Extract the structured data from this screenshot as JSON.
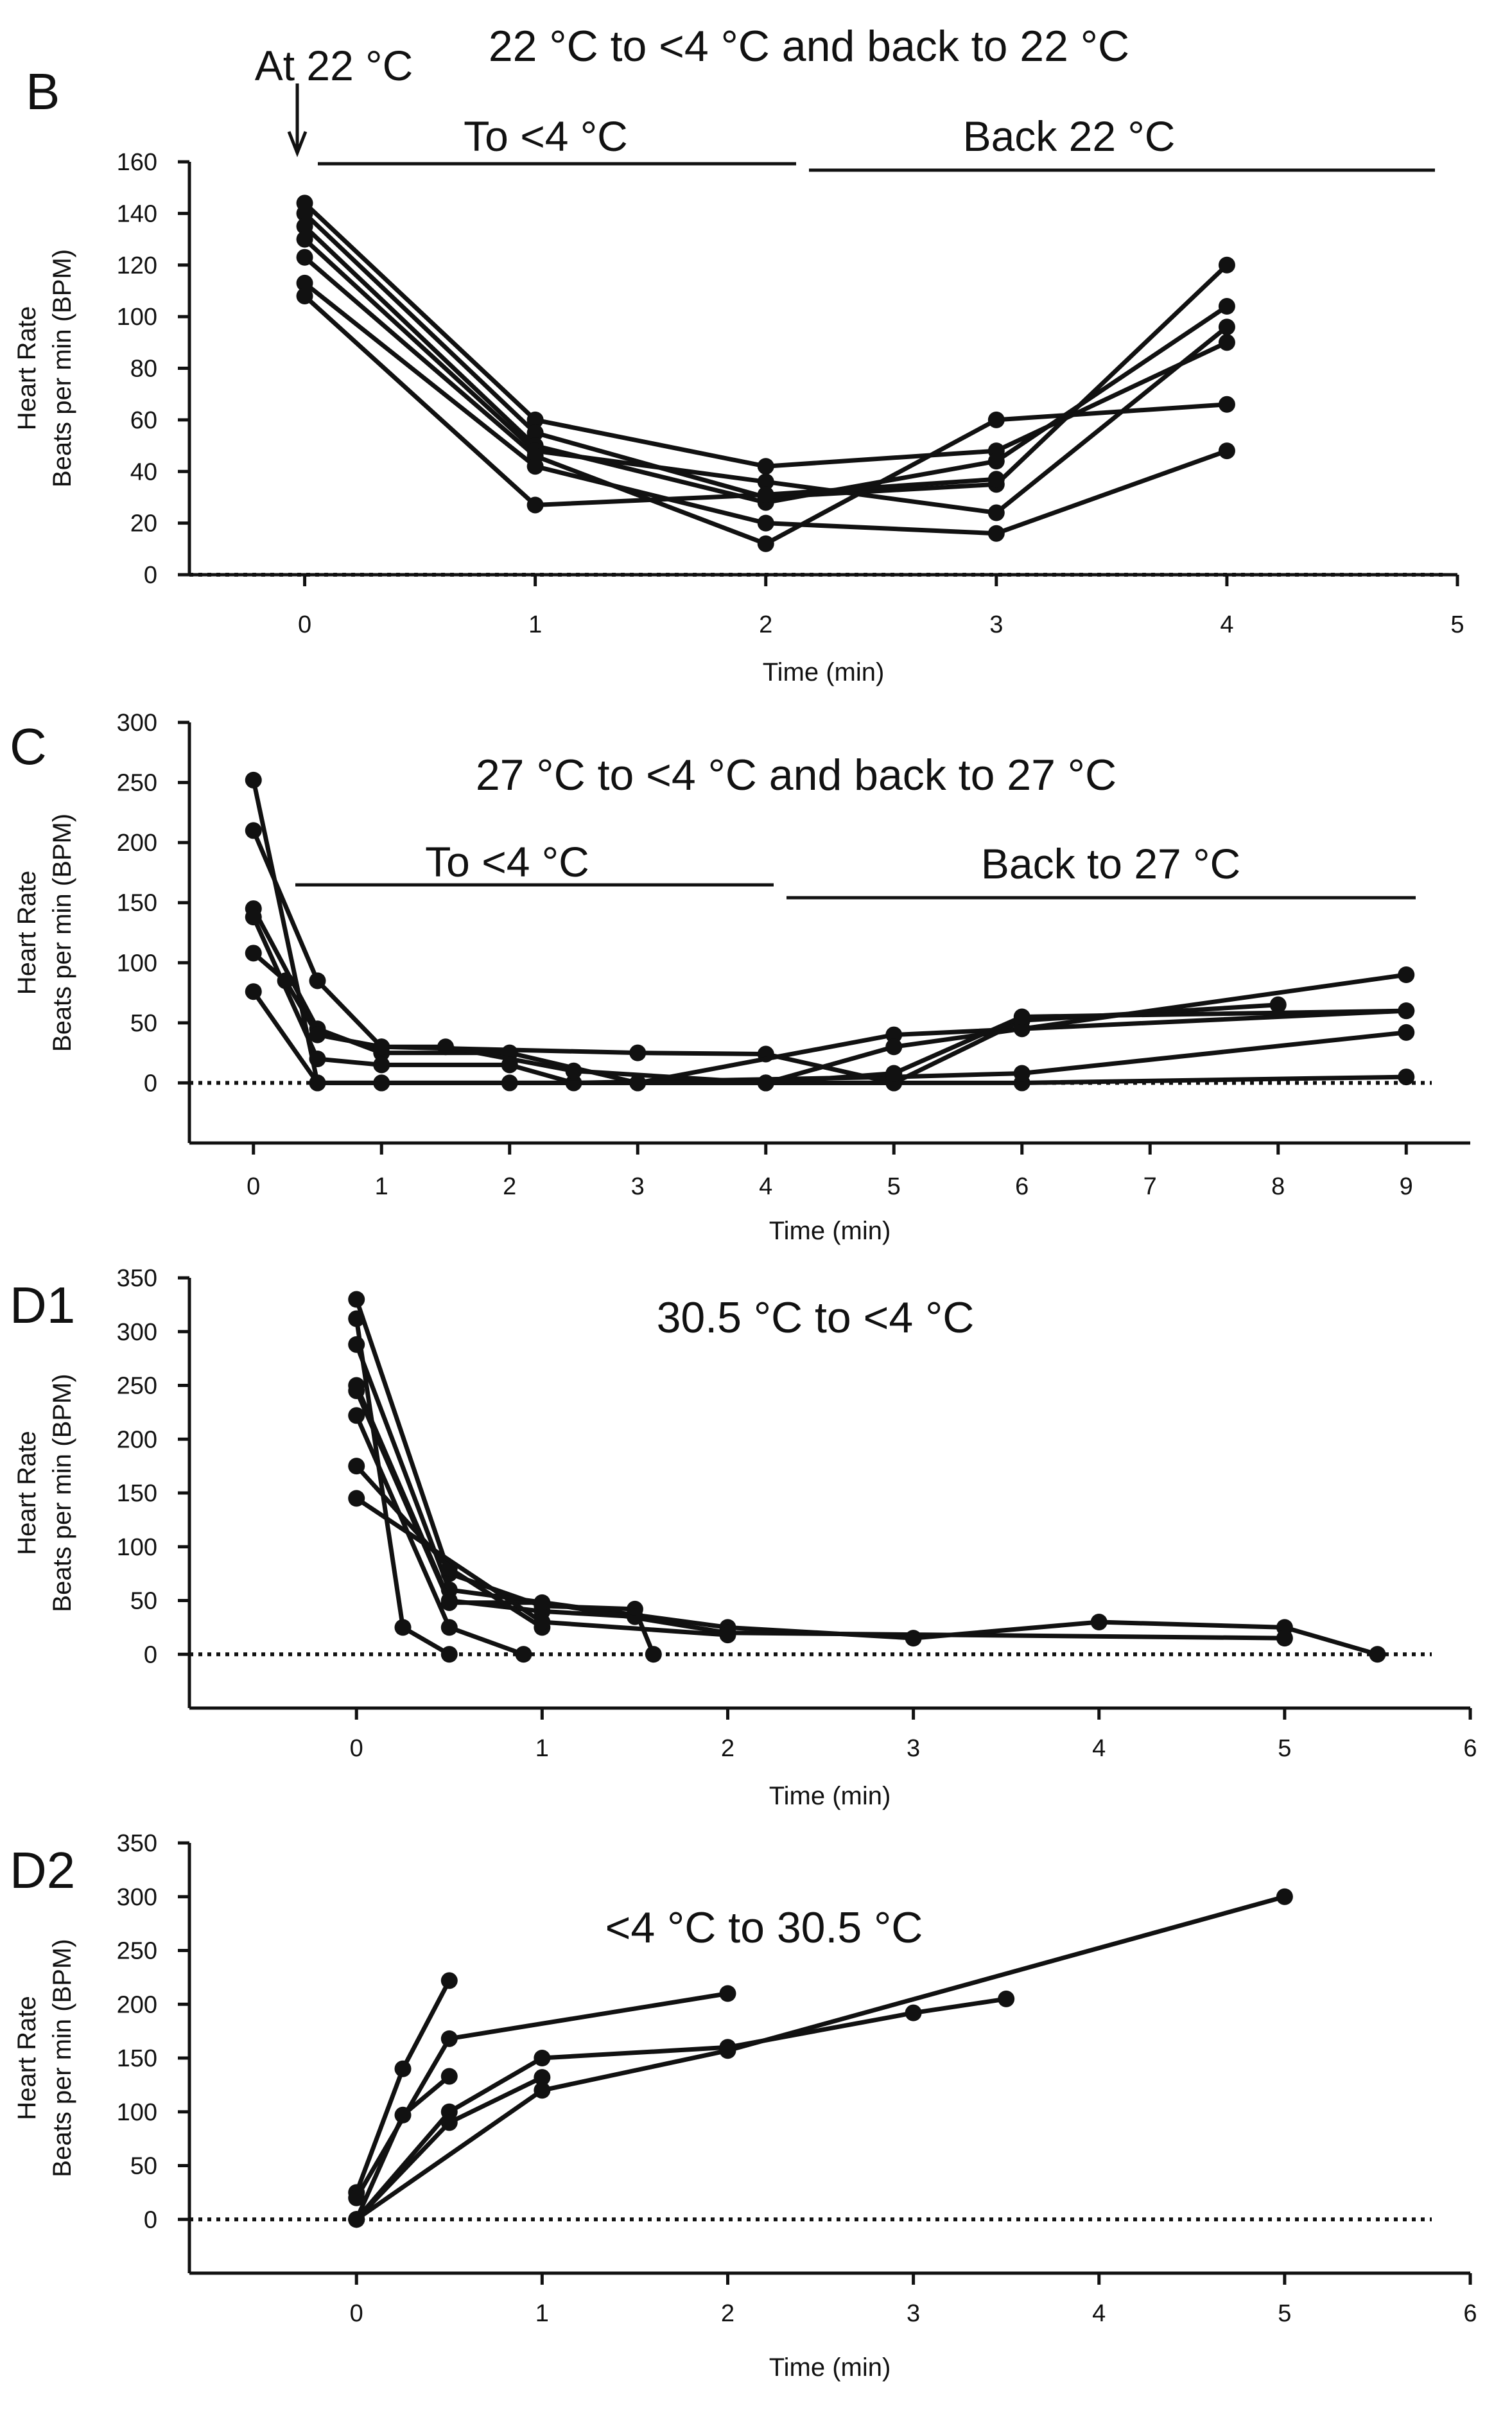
{
  "chart_data": [
    {
      "panel": "B",
      "type": "line",
      "title": "22 °C to <4 °C and back to 22 °C",
      "annotations": [
        "At 22 °C",
        "To <4 °C",
        "Back 22 °C"
      ],
      "xlabel": "Time (min)",
      "ylabel": [
        "Heart Rate",
        "Beats per min (BPM)"
      ],
      "xlim": [
        -0.5,
        5
      ],
      "ylim": [
        0,
        160
      ],
      "xticks": [
        0,
        1,
        2,
        3,
        4,
        5
      ],
      "yticks": [
        0,
        20,
        40,
        60,
        80,
        100,
        120,
        140,
        160
      ],
      "series": [
        {
          "x": [
            0,
            1,
            2,
            3,
            4
          ],
          "y": [
            144,
            60,
            42,
            48,
            90
          ]
        },
        {
          "x": [
            0,
            1,
            2,
            3,
            4
          ],
          "y": [
            140,
            55,
            30,
            35,
            120
          ]
        },
        {
          "x": [
            0,
            1,
            2,
            3,
            4
          ],
          "y": [
            135,
            50,
            28,
            44,
            104
          ]
        },
        {
          "x": [
            0,
            1,
            2,
            3,
            4
          ],
          "y": [
            130,
            48,
            36,
            24,
            96
          ]
        },
        {
          "x": [
            0,
            1,
            2,
            3,
            4
          ],
          "y": [
            123,
            46,
            12,
            60,
            66
          ]
        },
        {
          "x": [
            0,
            1,
            2,
            3,
            4
          ],
          "y": [
            113,
            42,
            20,
            16,
            48
          ]
        },
        {
          "x": [
            0,
            1,
            2,
            3
          ],
          "y": [
            108,
            27,
            31,
            37
          ]
        }
      ]
    },
    {
      "panel": "C",
      "type": "line",
      "title": "27 °C to <4 °C and back to 27 °C",
      "annotations": [
        "To <4 °C",
        "Back to 27 °C"
      ],
      "xlabel": "Time (min)",
      "ylabel": [
        "Heart Rate",
        "Beats per min (BPM)"
      ],
      "xlim": [
        -0.5,
        9.5
      ],
      "ylim": [
        -50,
        300
      ],
      "xticks": [
        0,
        1,
        2,
        3,
        4,
        5,
        6,
        7,
        8,
        9
      ],
      "yticks": [
        0,
        50,
        100,
        150,
        200,
        250,
        300
      ],
      "series": [
        {
          "x": [
            0,
            0.5,
            1,
            4,
            6,
            9
          ],
          "y": [
            252,
            0,
            0,
            0,
            0,
            5
          ]
        },
        {
          "x": [
            0,
            0.5,
            1,
            3,
            4,
            5,
            6,
            8
          ],
          "y": [
            210,
            85,
            30,
            25,
            24,
            0,
            52,
            65
          ]
        },
        {
          "x": [
            0,
            0.5,
            1,
            2,
            3,
            5,
            9
          ],
          "y": [
            145,
            45,
            25,
            25,
            0,
            40,
            60
          ]
        },
        {
          "x": [
            0,
            0.5,
            1,
            2,
            2.5,
            5,
            6,
            9
          ],
          "y": [
            138,
            20,
            15,
            15,
            0,
            5,
            8,
            42
          ]
        },
        {
          "x": [
            0,
            0.25,
            0.5,
            1,
            1.5,
            2.5,
            4,
            5,
            6,
            9
          ],
          "y": [
            108,
            85,
            40,
            30,
            30,
            10,
            0,
            30,
            45,
            90
          ]
        },
        {
          "x": [
            0,
            0.5,
            1,
            2,
            3,
            4,
            5
          ],
          "y": [
            76,
            0,
            0,
            0,
            0,
            0,
            0
          ]
        },
        {
          "x": [
            4,
            5,
            6,
            9
          ],
          "y": [
            0,
            8,
            55,
            60
          ]
        }
      ]
    },
    {
      "panel": "D1",
      "type": "line",
      "title": "30.5 °C to <4 °C",
      "annotations": [],
      "xlabel": "Time (min)",
      "ylabel": [
        "Heart Rate",
        "Beats per min (BPM)"
      ],
      "xlim": [
        -0.9,
        6
      ],
      "ylim": [
        -50,
        350
      ],
      "xticks": [
        0,
        1,
        2,
        3,
        4,
        5,
        6
      ],
      "yticks": [
        0,
        50,
        100,
        150,
        200,
        250,
        300,
        350
      ],
      "series": [
        {
          "x": [
            0,
            0.5,
            1,
            1.5,
            1.6
          ],
          "y": [
            330,
            75,
            45,
            42,
            0
          ]
        },
        {
          "x": [
            0,
            0.25,
            0.5
          ],
          "y": [
            312,
            25,
            0
          ]
        },
        {
          "x": [
            0,
            0.5,
            2,
            3,
            4,
            5,
            5.5
          ],
          "y": [
            288,
            60,
            25,
            15,
            30,
            25,
            0
          ]
        },
        {
          "x": [
            0,
            0.5,
            1,
            1.5
          ],
          "y": [
            250,
            50,
            40,
            35
          ]
        },
        {
          "x": [
            0,
            0.5,
            1,
            2,
            5
          ],
          "y": [
            245,
            48,
            48,
            20,
            15
          ]
        },
        {
          "x": [
            0,
            0.5,
            0.9
          ],
          "y": [
            222,
            25,
            0
          ]
        },
        {
          "x": [
            0,
            0.5,
            1
          ],
          "y": [
            175,
            80,
            25
          ]
        },
        {
          "x": [
            0,
            1,
            2
          ],
          "y": [
            145,
            30,
            18
          ]
        }
      ]
    },
    {
      "panel": "D2",
      "type": "line",
      "title": "<4 °C to 30.5 °C",
      "annotations": [],
      "xlabel": "Time (min)",
      "ylabel": [
        "Heart Rate",
        "Beats per min (BPM)"
      ],
      "xlim": [
        -0.9,
        6
      ],
      "ylim": [
        -50,
        350
      ],
      "xticks": [
        0,
        1,
        2,
        3,
        4,
        5,
        6
      ],
      "yticks": [
        0,
        50,
        100,
        150,
        200,
        250,
        300,
        350
      ],
      "series": [
        {
          "x": [
            0,
            0.25,
            0.5
          ],
          "y": [
            25,
            140,
            222
          ]
        },
        {
          "x": [
            0,
            0.5,
            2
          ],
          "y": [
            20,
            168,
            210
          ]
        },
        {
          "x": [
            0,
            0.25,
            0.5
          ],
          "y": [
            0,
            97,
            133
          ]
        },
        {
          "x": [
            0,
            0.5,
            1,
            2,
            3,
            3.5
          ],
          "y": [
            0,
            100,
            150,
            160,
            192,
            205
          ]
        },
        {
          "x": [
            0,
            0.5,
            1
          ],
          "y": [
            0,
            90,
            132
          ]
        },
        {
          "x": [
            0,
            1,
            2,
            5
          ],
          "y": [
            0,
            120,
            157,
            300
          ]
        }
      ]
    }
  ]
}
